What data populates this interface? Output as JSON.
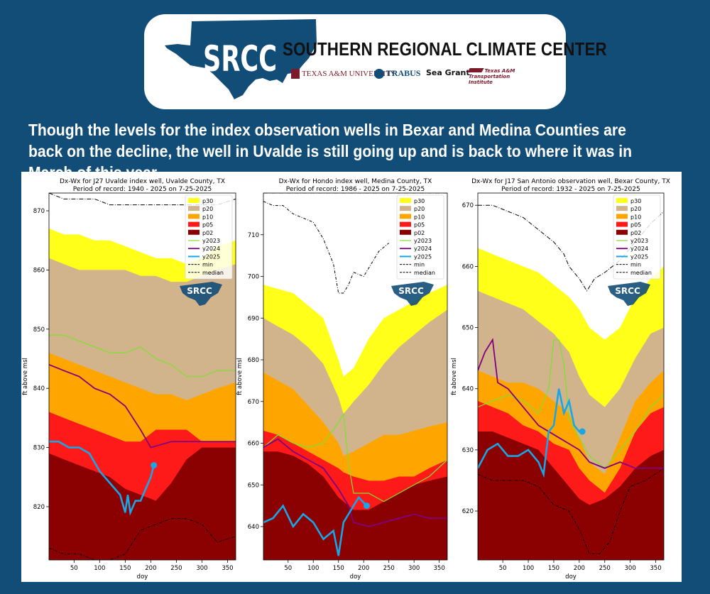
{
  "header": {
    "logo_text": "SRCC",
    "org_name": "SOUTHERN REGIONAL CLIMATE CENTER",
    "partners": [
      "TEXAS A&M UNIVERSITY",
      "TRABUS",
      "Sea Grant",
      "Texas A&M Transportation Institute"
    ],
    "colors": {
      "brand_blue": "#124d78",
      "partner_maroon": "#7a1a2a"
    }
  },
  "headline": "Though the levels for the index observation wells in Bexar and Medina Counties are back on the decline, the well in Uvalde is still going up and is back to where it was in March of this year.",
  "legend_labels": [
    "p30",
    "p20",
    "p10",
    "p05",
    "p02",
    "y2023",
    "y2024",
    "y2025",
    "min",
    "median"
  ],
  "series_colors": {
    "p30": "#ffff1a",
    "p20": "#d2b48c",
    "p10": "#ffa500",
    "p05": "#ff1a1a",
    "p02": "#8b0000",
    "y2023": "#7ee030",
    "y2024": "#800080",
    "y2025": "#1aa6e6"
  },
  "watermark": "SRCC",
  "chart_data": [
    {
      "type": "area",
      "title": "Dx-Wx for J27 Uvalde index well, Uvalde County, TX",
      "subtitle": "Period of record: 1940 - 2025 on 7-25-2025",
      "xlabel": "doy",
      "ylabel": "ft above msl",
      "xlim": [
        1,
        366
      ],
      "ylim": [
        811,
        873
      ],
      "xticks": [
        50,
        100,
        150,
        200,
        250,
        300,
        350
      ],
      "yticks": [
        820,
        830,
        840,
        850,
        860,
        870
      ],
      "x": [
        1,
        30,
        60,
        90,
        120,
        150,
        180,
        210,
        240,
        270,
        300,
        330,
        366
      ],
      "bands": {
        "p30": [
          867,
          866,
          866,
          865,
          865,
          864,
          863,
          862,
          862,
          861,
          862,
          864,
          865
        ],
        "p20": [
          862,
          861,
          860,
          860,
          860,
          860,
          859,
          859,
          858,
          858,
          859,
          860,
          861
        ],
        "p10": [
          846,
          845,
          844,
          843,
          842,
          841,
          840,
          839,
          839,
          838,
          839,
          840,
          841
        ],
        "p05": [
          836,
          835,
          834,
          833,
          832,
          831,
          831,
          833,
          833,
          833,
          831,
          831,
          831
        ],
        "p02": [
          829,
          828,
          827,
          826,
          825,
          823,
          822,
          821,
          824,
          828,
          830,
          830,
          830
        ]
      },
      "series": [
        {
          "name": "y2023",
          "x": [
            1,
            30,
            60,
            90,
            120,
            150,
            180,
            210,
            240,
            270,
            300,
            330,
            366
          ],
          "values": [
            849,
            849,
            848,
            847,
            846,
            846,
            847,
            845,
            844,
            842,
            842,
            843,
            843
          ]
        },
        {
          "name": "y2024",
          "x": [
            1,
            30,
            60,
            90,
            120,
            150,
            180,
            200,
            240,
            270,
            300,
            330,
            366
          ],
          "values": [
            844,
            843,
            842,
            840,
            839,
            837,
            833,
            830,
            831,
            831,
            831,
            831,
            831
          ]
        },
        {
          "name": "y2025",
          "x": [
            1,
            20,
            40,
            60,
            80,
            100,
            120,
            140,
            150,
            155,
            160,
            170,
            180,
            190,
            200,
            206
          ],
          "values": [
            831,
            831,
            830,
            830,
            829,
            826,
            824,
            822,
            819,
            822,
            819,
            821,
            821,
            823,
            825,
            827
          ]
        },
        {
          "name": "min",
          "x": [
            1,
            30,
            60,
            90,
            120,
            150,
            180,
            210,
            240,
            270,
            300,
            330,
            366
          ],
          "values": [
            813,
            812,
            812,
            811,
            811,
            812,
            816,
            817,
            818,
            818,
            817,
            814,
            815
          ]
        },
        {
          "name": "median",
          "x": [
            1,
            30,
            60,
            90,
            120,
            150,
            180,
            210,
            240,
            270,
            300,
            330,
            366
          ],
          "values": [
            873,
            872,
            872,
            872,
            871,
            871,
            871,
            871,
            871,
            871,
            871,
            871,
            872
          ]
        }
      ]
    },
    {
      "type": "area",
      "title": "Dx-Wx for Hondo index well, Medina County, TX",
      "subtitle": "Period of record: 1986 - 2025 on 7-25-2025",
      "xlabel": "doy",
      "ylabel": "ft above msl",
      "xlim": [
        1,
        366
      ],
      "ylim": [
        632,
        720
      ],
      "xticks": [
        50,
        100,
        150,
        200,
        250,
        300,
        350
      ],
      "yticks": [
        640,
        650,
        660,
        670,
        680,
        690,
        700,
        710
      ],
      "x": [
        1,
        30,
        60,
        90,
        120,
        150,
        160,
        180,
        210,
        240,
        270,
        300,
        330,
        366
      ],
      "bands": {
        "p30": [
          698,
          697,
          696,
          693,
          690,
          680,
          676,
          678,
          685,
          690,
          692,
          694,
          696,
          698
        ],
        "p20": [
          690,
          688,
          686,
          683,
          679,
          671,
          667,
          670,
          674,
          679,
          683,
          686,
          689,
          692
        ],
        "p10": [
          677,
          675,
          673,
          669,
          665,
          660,
          657,
          658,
          660,
          662,
          662,
          663,
          664,
          665
        ],
        "p05": [
          663,
          662,
          660,
          658,
          656,
          654,
          653,
          652,
          651,
          651,
          652,
          652,
          654,
          656
        ],
        "p02": [
          658,
          658,
          657,
          655,
          652,
          647,
          646,
          644,
          644,
          646,
          648,
          650,
          651,
          652
        ]
      },
      "series": [
        {
          "name": "y2023",
          "x": [
            1,
            30,
            60,
            90,
            120,
            150,
            160,
            170,
            180,
            210,
            240,
            270,
            300,
            330,
            366
          ],
          "values": [
            659,
            662,
            660,
            659,
            660,
            665,
            667,
            655,
            648,
            648,
            646,
            648,
            650,
            652,
            656
          ]
        },
        {
          "name": "y2024",
          "x": [
            1,
            30,
            60,
            90,
            120,
            150,
            170,
            180,
            210,
            240,
            270,
            300,
            330,
            366
          ],
          "values": [
            659,
            661,
            658,
            656,
            654,
            649,
            645,
            641,
            640,
            641,
            642,
            643,
            642,
            642
          ]
        },
        {
          "name": "y2025",
          "x": [
            1,
            20,
            40,
            60,
            80,
            100,
            120,
            140,
            150,
            160,
            170,
            190,
            206
          ],
          "values": [
            641,
            642,
            645,
            640,
            643,
            641,
            637,
            639,
            633,
            641,
            643,
            647,
            645
          ]
        },
        {
          "name": "min",
          "x": [
            1,
            20,
            40,
            60,
            80,
            100,
            120,
            140,
            150,
            160,
            170,
            180,
            200,
            210,
            230,
            250
          ],
          "values": [
            718,
            717,
            717,
            715,
            714,
            713,
            709,
            703,
            696,
            696,
            698,
            701,
            700,
            702,
            706,
            708
          ]
        },
        {
          "name": "median",
          "x": [
            1,
            366
          ],
          "values": [
            720,
            720
          ]
        }
      ]
    },
    {
      "type": "area",
      "title": "Dx-Wx for J17 San Antonio observation well, Bexar County, TX",
      "subtitle": "Period of record: 1932 - 2025 on 7-25-2025",
      "xlabel": "doy",
      "ylabel": "ft above msl",
      "xlim": [
        1,
        366
      ],
      "ylim": [
        612,
        672
      ],
      "xticks": [
        50,
        100,
        150,
        200,
        250,
        300,
        350
      ],
      "yticks": [
        620,
        630,
        640,
        650,
        660,
        670
      ],
      "x": [
        1,
        30,
        60,
        90,
        120,
        150,
        180,
        200,
        220,
        250,
        280,
        310,
        340,
        366
      ],
      "bands": {
        "p30": [
          663,
          662,
          661,
          660,
          659,
          657,
          655,
          653,
          650,
          648,
          650,
          655,
          658,
          660
        ],
        "p20": [
          656,
          655,
          654,
          653,
          651,
          649,
          646,
          642,
          639,
          637,
          640,
          645,
          649,
          650
        ],
        "p10": [
          643,
          642,
          641,
          641,
          640,
          638,
          636,
          632,
          628,
          626,
          632,
          638,
          641,
          643
        ],
        "p05": [
          638,
          637,
          636,
          634,
          633,
          631,
          630,
          627,
          625,
          623,
          627,
          633,
          636,
          637
        ],
        "p02": [
          633,
          633,
          632,
          631,
          630,
          627,
          624,
          622,
          621,
          622,
          624,
          627,
          629,
          630
        ]
      },
      "series": [
        {
          "name": "y2023",
          "x": [
            1,
            30,
            60,
            90,
            120,
            140,
            150,
            160,
            170,
            180,
            200,
            220,
            250,
            280,
            310,
            340,
            366
          ],
          "values": [
            637,
            638,
            639,
            638,
            636,
            640,
            648,
            648,
            644,
            635,
            632,
            629,
            627,
            630,
            633,
            637,
            639
          ]
        },
        {
          "name": "y2024",
          "x": [
            1,
            15,
            30,
            40,
            60,
            80,
            100,
            120,
            140,
            160,
            180,
            200,
            220,
            250,
            280,
            310,
            340,
            366
          ],
          "values": [
            643,
            646,
            648,
            641,
            640,
            638,
            636,
            634,
            633,
            632,
            631,
            630,
            628,
            627,
            628,
            627,
            627,
            627
          ]
        },
        {
          "name": "y2025",
          "x": [
            1,
            20,
            40,
            60,
            80,
            100,
            120,
            130,
            140,
            150,
            160,
            170,
            180,
            190,
            200,
            206
          ],
          "values": [
            627,
            630,
            631,
            629,
            629,
            630,
            628,
            626,
            633,
            634,
            640,
            636,
            638,
            634,
            633,
            633
          ]
        },
        {
          "name": "min",
          "x": [
            1,
            30,
            60,
            90,
            120,
            150,
            180,
            200,
            220,
            240,
            260,
            280,
            300,
            330,
            366
          ],
          "values": [
            626,
            625,
            625,
            625,
            624,
            621,
            620,
            617,
            613,
            613,
            615,
            620,
            624,
            625,
            627
          ]
        },
        {
          "name": "median",
          "x": [
            1,
            30,
            60,
            90,
            120,
            150,
            170,
            180,
            200,
            215,
            230,
            250,
            280,
            310,
            340,
            366
          ],
          "values": [
            670,
            670,
            669,
            668,
            666,
            664,
            662,
            660,
            658,
            656,
            658,
            659,
            661,
            664,
            667,
            669
          ]
        }
      ]
    }
  ]
}
